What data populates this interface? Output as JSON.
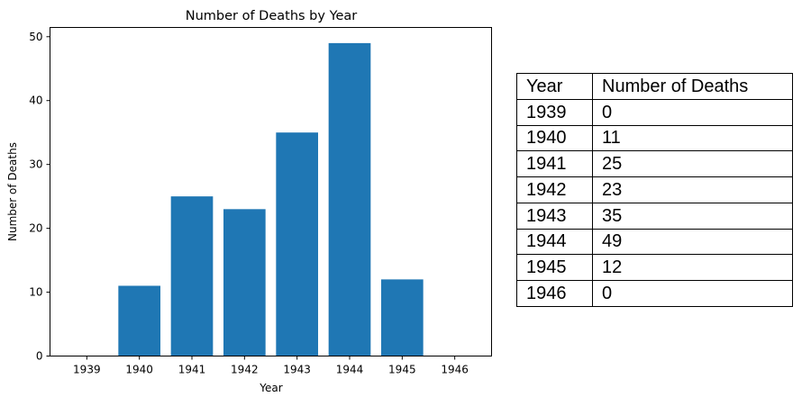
{
  "chart_data": {
    "type": "bar",
    "title": "Number of Deaths by Year",
    "xlabel": "Year",
    "ylabel": "Number of Deaths",
    "categories": [
      "1939",
      "1940",
      "1941",
      "1942",
      "1943",
      "1944",
      "1945",
      "1946"
    ],
    "values": [
      0,
      11,
      25,
      23,
      35,
      49,
      12,
      0
    ],
    "ylim": [
      0,
      51.45
    ],
    "yticks": [
      0,
      10,
      20,
      30,
      40,
      50
    ],
    "bar_color": "#1f77b4",
    "grid": false,
    "legend": null
  },
  "table": {
    "headers": [
      "Year",
      "Number of Deaths"
    ],
    "rows": [
      [
        "1939",
        "0"
      ],
      [
        "1940",
        "11"
      ],
      [
        "1941",
        "25"
      ],
      [
        "1942",
        "23"
      ],
      [
        "1943",
        "35"
      ],
      [
        "1944",
        "49"
      ],
      [
        "1945",
        "12"
      ],
      [
        "1946",
        "0"
      ]
    ]
  }
}
